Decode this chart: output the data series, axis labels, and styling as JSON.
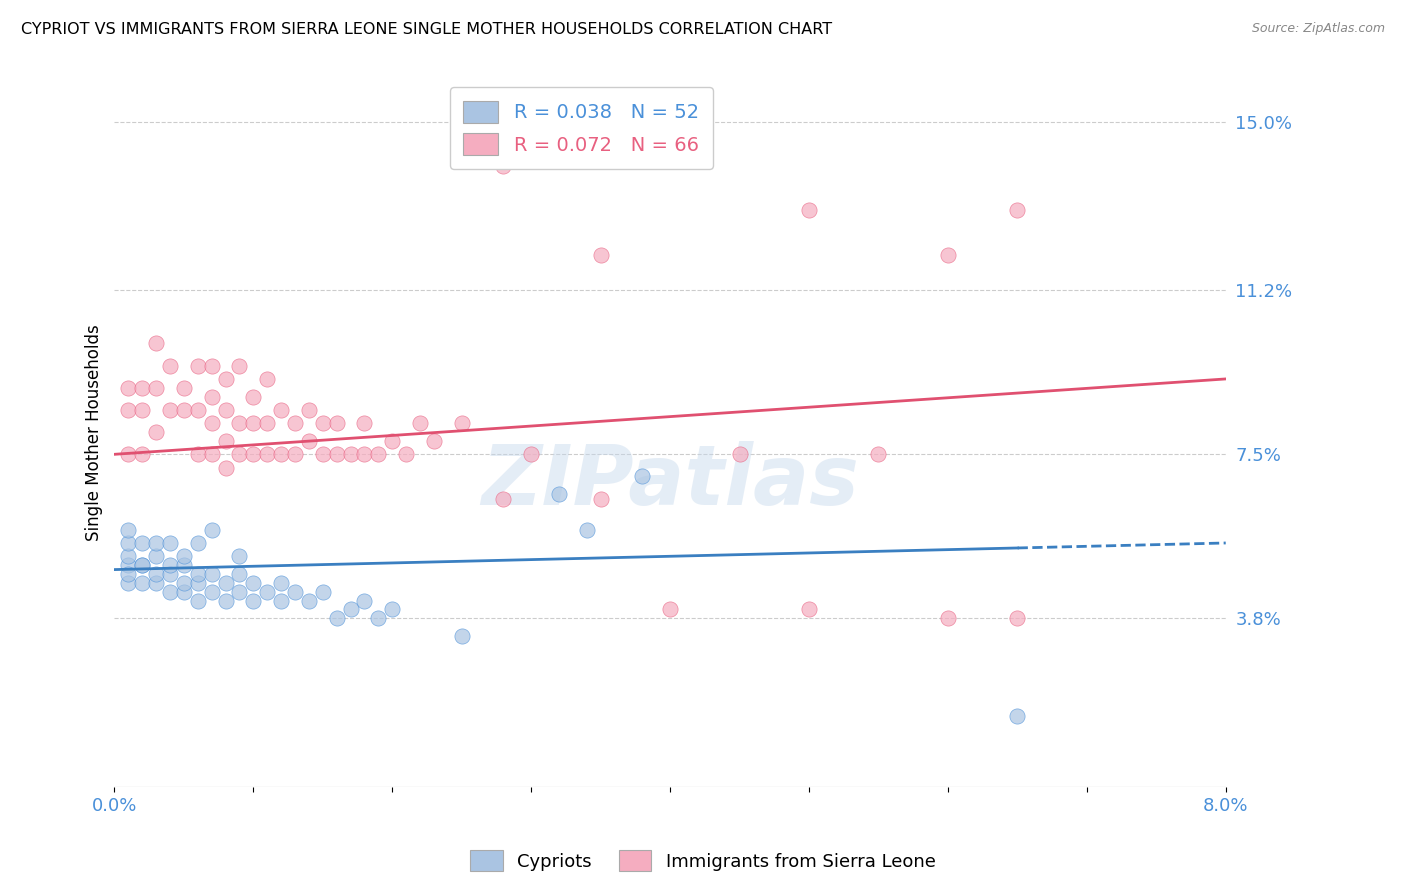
{
  "title": "CYPRIOT VS IMMIGRANTS FROM SIERRA LEONE SINGLE MOTHER HOUSEHOLDS CORRELATION CHART",
  "source": "Source: ZipAtlas.com",
  "ylabel": "Single Mother Households",
  "xlim": [
    0.0,
    0.08
  ],
  "ylim": [
    0.0,
    0.16
  ],
  "ytick_positions": [
    0.038,
    0.075,
    0.112,
    0.15
  ],
  "yticklabels": [
    "3.8%",
    "7.5%",
    "11.2%",
    "15.0%"
  ],
  "legend_r_blue": "R = 0.038",
  "legend_n_blue": "N = 52",
  "legend_r_pink": "R = 0.072",
  "legend_n_pink": "N = 66",
  "color_blue": "#aac4e2",
  "color_pink": "#f5adc0",
  "color_blue_text": "#4a90d9",
  "color_pink_text": "#e86080",
  "trend_blue": "#3a7fc1",
  "trend_pink": "#e05070",
  "watermark": "ZIPatlas",
  "blue_x": [
    0.001,
    0.001,
    0.001,
    0.001,
    0.001,
    0.001,
    0.002,
    0.002,
    0.002,
    0.002,
    0.003,
    0.003,
    0.003,
    0.003,
    0.004,
    0.004,
    0.004,
    0.004,
    0.005,
    0.005,
    0.005,
    0.005,
    0.006,
    0.006,
    0.006,
    0.006,
    0.007,
    0.007,
    0.007,
    0.008,
    0.008,
    0.009,
    0.009,
    0.009,
    0.01,
    0.01,
    0.011,
    0.012,
    0.012,
    0.013,
    0.014,
    0.015,
    0.016,
    0.017,
    0.018,
    0.019,
    0.02,
    0.025,
    0.032,
    0.034,
    0.038,
    0.065
  ],
  "blue_y": [
    0.05,
    0.052,
    0.055,
    0.046,
    0.048,
    0.058,
    0.05,
    0.046,
    0.05,
    0.055,
    0.046,
    0.048,
    0.052,
    0.055,
    0.044,
    0.048,
    0.05,
    0.055,
    0.044,
    0.046,
    0.05,
    0.052,
    0.042,
    0.046,
    0.048,
    0.055,
    0.044,
    0.048,
    0.058,
    0.042,
    0.046,
    0.044,
    0.048,
    0.052,
    0.042,
    0.046,
    0.044,
    0.042,
    0.046,
    0.044,
    0.042,
    0.044,
    0.038,
    0.04,
    0.042,
    0.038,
    0.04,
    0.034,
    0.066,
    0.058,
    0.07,
    0.016
  ],
  "pink_x": [
    0.001,
    0.001,
    0.001,
    0.002,
    0.002,
    0.002,
    0.003,
    0.003,
    0.003,
    0.004,
    0.004,
    0.005,
    0.005,
    0.006,
    0.006,
    0.006,
    0.007,
    0.007,
    0.007,
    0.007,
    0.008,
    0.008,
    0.008,
    0.008,
    0.009,
    0.009,
    0.009,
    0.01,
    0.01,
    0.01,
    0.011,
    0.011,
    0.011,
    0.012,
    0.012,
    0.013,
    0.013,
    0.014,
    0.014,
    0.015,
    0.015,
    0.016,
    0.016,
    0.017,
    0.018,
    0.018,
    0.019,
    0.02,
    0.021,
    0.022,
    0.023,
    0.025,
    0.028,
    0.03,
    0.035,
    0.04,
    0.045,
    0.05,
    0.06,
    0.065,
    0.028,
    0.035,
    0.05,
    0.055,
    0.06,
    0.065
  ],
  "pink_y": [
    0.075,
    0.085,
    0.09,
    0.075,
    0.085,
    0.09,
    0.08,
    0.09,
    0.1,
    0.085,
    0.095,
    0.085,
    0.09,
    0.075,
    0.085,
    0.095,
    0.075,
    0.082,
    0.088,
    0.095,
    0.072,
    0.078,
    0.085,
    0.092,
    0.075,
    0.082,
    0.095,
    0.075,
    0.082,
    0.088,
    0.075,
    0.082,
    0.092,
    0.075,
    0.085,
    0.075,
    0.082,
    0.078,
    0.085,
    0.075,
    0.082,
    0.075,
    0.082,
    0.075,
    0.075,
    0.082,
    0.075,
    0.078,
    0.075,
    0.082,
    0.078,
    0.082,
    0.065,
    0.075,
    0.065,
    0.04,
    0.075,
    0.04,
    0.038,
    0.038,
    0.14,
    0.12,
    0.13,
    0.075,
    0.12,
    0.13
  ]
}
